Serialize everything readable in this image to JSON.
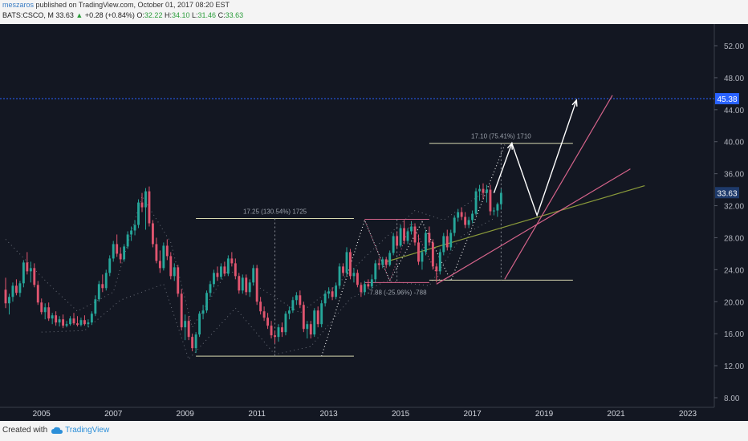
{
  "header": {
    "author": "meszaros",
    "published": "published on TradingView.com, October 01, 2017 08:20 EST",
    "symbol": "BATS:CSCO, M",
    "price": "33.63",
    "change": "+0.28 (+0.84%)",
    "o_label": "O:",
    "o_value": "32.22",
    "h_label": "H:",
    "h_value": "34.10",
    "l_label": "L:",
    "l_value": "31.46",
    "c_label": "C:",
    "c_value": "33.63"
  },
  "footer": {
    "created_with": "Created with",
    "brand": "TradingView"
  },
  "colors": {
    "background": "#131722",
    "up": "#26a69a",
    "down": "#e0556f",
    "accent": "#2962ff",
    "measure": "#d8d8b0",
    "pink": "#d4638a"
  },
  "chart_data": {
    "type": "candlestick",
    "title": "BATS:CSCO, M",
    "x_range": [
      2004.0,
      2024.0
    ],
    "ylim": [
      7.0,
      54.5
    ],
    "y_ticks": [
      "52.00",
      "48.00",
      "44.00",
      "40.00",
      "36.00",
      "32.00",
      "28.00",
      "24.00",
      "20.00",
      "16.00",
      "12.00",
      "8.00"
    ],
    "x_ticks": [
      "2005",
      "2007",
      "2009",
      "2011",
      "2013",
      "2015",
      "2017",
      "2019",
      "2021",
      "2023"
    ],
    "current_price_label": "33.63",
    "target_price_label": "45.38",
    "target_line_price": 45.38,
    "annotations": [
      {
        "text": "17.25 (130.54%) 1725",
        "x_start": 2009.3,
        "x_end": 2013.7,
        "y_low": 13.2,
        "y_high": 30.4
      },
      {
        "text": "17.10 (75.41%) 1710",
        "x_start": 2015.8,
        "x_end": 2019.8,
        "y_low": 22.7,
        "y_high": 39.8
      },
      {
        "text": "-7.88 (-25.96%) -788",
        "x_start": 2014.0,
        "x_end": 2015.8,
        "y_low": 22.4,
        "y_high": 30.3
      }
    ],
    "candles": [
      {
        "t": 2004.0,
        "o": 21.5,
        "h": 23.0,
        "l": 19.2,
        "c": 19.8
      },
      {
        "t": 2004.1,
        "o": 19.8,
        "h": 21.0,
        "l": 18.4,
        "c": 20.6
      },
      {
        "t": 2004.2,
        "o": 20.6,
        "h": 22.4,
        "l": 20.0,
        "c": 22.0
      },
      {
        "t": 2004.3,
        "o": 22.0,
        "h": 22.8,
        "l": 20.8,
        "c": 21.1
      },
      {
        "t": 2004.4,
        "o": 21.1,
        "h": 22.6,
        "l": 20.6,
        "c": 22.3
      },
      {
        "t": 2004.5,
        "o": 22.3,
        "h": 25.2,
        "l": 21.8,
        "c": 24.9
      },
      {
        "t": 2004.6,
        "o": 24.9,
        "h": 26.2,
        "l": 23.4,
        "c": 23.8
      },
      {
        "t": 2004.7,
        "o": 23.8,
        "h": 25.0,
        "l": 22.4,
        "c": 24.2
      },
      {
        "t": 2004.8,
        "o": 24.2,
        "h": 24.8,
        "l": 21.8,
        "c": 22.1
      },
      {
        "t": 2004.9,
        "o": 22.1,
        "h": 22.6,
        "l": 19.6,
        "c": 19.9
      },
      {
        "t": 2005.0,
        "o": 19.9,
        "h": 20.4,
        "l": 18.4,
        "c": 18.7
      },
      {
        "t": 2005.1,
        "o": 18.7,
        "h": 19.8,
        "l": 17.8,
        "c": 19.3
      },
      {
        "t": 2005.2,
        "o": 19.3,
        "h": 19.9,
        "l": 17.6,
        "c": 17.9
      },
      {
        "t": 2005.3,
        "o": 17.9,
        "h": 18.6,
        "l": 17.2,
        "c": 18.3
      },
      {
        "t": 2005.4,
        "o": 18.3,
        "h": 18.8,
        "l": 17.0,
        "c": 17.4
      },
      {
        "t": 2005.5,
        "o": 17.4,
        "h": 18.2,
        "l": 16.9,
        "c": 17.8
      },
      {
        "t": 2005.6,
        "o": 17.8,
        "h": 18.4,
        "l": 16.7,
        "c": 17.0
      },
      {
        "t": 2005.7,
        "o": 17.0,
        "h": 17.6,
        "l": 16.8,
        "c": 17.2
      },
      {
        "t": 2005.8,
        "o": 17.2,
        "h": 18.2,
        "l": 17.0,
        "c": 17.9
      },
      {
        "t": 2005.9,
        "o": 17.9,
        "h": 18.6,
        "l": 17.1,
        "c": 17.3
      },
      {
        "t": 2006.0,
        "o": 17.3,
        "h": 18.2,
        "l": 16.9,
        "c": 17.1
      },
      {
        "t": 2006.1,
        "o": 17.1,
        "h": 18.0,
        "l": 16.9,
        "c": 17.7
      },
      {
        "t": 2006.2,
        "o": 17.7,
        "h": 18.3,
        "l": 17.0,
        "c": 17.2
      },
      {
        "t": 2006.3,
        "o": 17.2,
        "h": 17.8,
        "l": 16.8,
        "c": 17.4
      },
      {
        "t": 2006.4,
        "o": 17.4,
        "h": 18.8,
        "l": 17.1,
        "c": 18.5
      },
      {
        "t": 2006.5,
        "o": 18.5,
        "h": 20.8,
        "l": 18.2,
        "c": 20.3
      },
      {
        "t": 2006.6,
        "o": 20.3,
        "h": 22.6,
        "l": 20.0,
        "c": 22.2
      },
      {
        "t": 2006.7,
        "o": 22.2,
        "h": 23.4,
        "l": 21.2,
        "c": 21.7
      },
      {
        "t": 2006.8,
        "o": 21.7,
        "h": 24.0,
        "l": 21.4,
        "c": 23.6
      },
      {
        "t": 2006.9,
        "o": 23.6,
        "h": 25.8,
        "l": 23.2,
        "c": 25.4
      },
      {
        "t": 2007.0,
        "o": 25.4,
        "h": 27.6,
        "l": 25.0,
        "c": 27.2
      },
      {
        "t": 2007.1,
        "o": 27.2,
        "h": 28.4,
        "l": 25.6,
        "c": 26.0
      },
      {
        "t": 2007.2,
        "o": 26.0,
        "h": 26.8,
        "l": 24.8,
        "c": 25.3
      },
      {
        "t": 2007.3,
        "o": 25.3,
        "h": 27.2,
        "l": 25.0,
        "c": 26.9
      },
      {
        "t": 2007.4,
        "o": 26.9,
        "h": 28.8,
        "l": 26.6,
        "c": 28.4
      },
      {
        "t": 2007.5,
        "o": 28.4,
        "h": 29.4,
        "l": 27.6,
        "c": 28.9
      },
      {
        "t": 2007.6,
        "o": 28.9,
        "h": 30.2,
        "l": 28.3,
        "c": 29.6
      },
      {
        "t": 2007.7,
        "o": 29.6,
        "h": 32.8,
        "l": 29.2,
        "c": 32.4
      },
      {
        "t": 2007.8,
        "o": 32.4,
        "h": 33.6,
        "l": 31.2,
        "c": 31.8
      },
      {
        "t": 2007.9,
        "o": 31.8,
        "h": 34.2,
        "l": 29.0,
        "c": 33.8
      },
      {
        "t": 2008.0,
        "o": 33.8,
        "h": 34.4,
        "l": 29.4,
        "c": 29.8
      },
      {
        "t": 2008.1,
        "o": 29.8,
        "h": 30.2,
        "l": 26.8,
        "c": 27.2
      },
      {
        "t": 2008.2,
        "o": 27.2,
        "h": 28.0,
        "l": 24.8,
        "c": 25.1
      },
      {
        "t": 2008.3,
        "o": 25.1,
        "h": 26.4,
        "l": 23.6,
        "c": 24.2
      },
      {
        "t": 2008.4,
        "o": 24.2,
        "h": 27.4,
        "l": 23.9,
        "c": 27.0
      },
      {
        "t": 2008.5,
        "o": 27.0,
        "h": 27.8,
        "l": 25.2,
        "c": 25.7
      },
      {
        "t": 2008.6,
        "o": 25.7,
        "h": 26.2,
        "l": 22.8,
        "c": 23.2
      },
      {
        "t": 2008.7,
        "o": 23.2,
        "h": 24.8,
        "l": 22.6,
        "c": 24.3
      },
      {
        "t": 2008.8,
        "o": 24.3,
        "h": 24.6,
        "l": 20.6,
        "c": 21.0
      },
      {
        "t": 2008.9,
        "o": 21.0,
        "h": 21.6,
        "l": 16.4,
        "c": 16.8
      },
      {
        "t": 2009.0,
        "o": 16.8,
        "h": 18.4,
        "l": 15.2,
        "c": 17.6
      },
      {
        "t": 2009.1,
        "o": 17.6,
        "h": 18.2,
        "l": 15.2,
        "c": 15.6
      },
      {
        "t": 2009.2,
        "o": 15.6,
        "h": 16.0,
        "l": 13.8,
        "c": 14.2
      },
      {
        "t": 2009.3,
        "o": 14.2,
        "h": 16.2,
        "l": 13.6,
        "c": 15.9
      },
      {
        "t": 2009.4,
        "o": 15.9,
        "h": 18.8,
        "l": 15.6,
        "c": 18.5
      },
      {
        "t": 2009.5,
        "o": 18.5,
        "h": 19.6,
        "l": 17.8,
        "c": 18.9
      },
      {
        "t": 2009.6,
        "o": 18.9,
        "h": 21.4,
        "l": 18.6,
        "c": 21.1
      },
      {
        "t": 2009.7,
        "o": 21.1,
        "h": 22.6,
        "l": 20.6,
        "c": 22.2
      },
      {
        "t": 2009.8,
        "o": 22.2,
        "h": 24.0,
        "l": 21.8,
        "c": 23.6
      },
      {
        "t": 2009.9,
        "o": 23.6,
        "h": 24.4,
        "l": 22.6,
        "c": 23.1
      },
      {
        "t": 2010.0,
        "o": 23.1,
        "h": 24.8,
        "l": 22.8,
        "c": 24.4
      },
      {
        "t": 2010.1,
        "o": 24.4,
        "h": 25.0,
        "l": 23.2,
        "c": 23.5
      },
      {
        "t": 2010.2,
        "o": 23.5,
        "h": 25.8,
        "l": 23.2,
        "c": 25.4
      },
      {
        "t": 2010.3,
        "o": 25.4,
        "h": 26.2,
        "l": 24.4,
        "c": 24.8
      },
      {
        "t": 2010.4,
        "o": 24.8,
        "h": 25.4,
        "l": 22.8,
        "c": 23.2
      },
      {
        "t": 2010.5,
        "o": 23.2,
        "h": 23.6,
        "l": 21.0,
        "c": 21.4
      },
      {
        "t": 2010.6,
        "o": 21.4,
        "h": 23.4,
        "l": 21.0,
        "c": 23.0
      },
      {
        "t": 2010.7,
        "o": 23.0,
        "h": 23.4,
        "l": 20.8,
        "c": 21.2
      },
      {
        "t": 2010.8,
        "o": 21.2,
        "h": 22.8,
        "l": 20.6,
        "c": 22.4
      },
      {
        "t": 2010.9,
        "o": 22.4,
        "h": 24.6,
        "l": 22.0,
        "c": 24.2
      },
      {
        "t": 2011.0,
        "o": 24.2,
        "h": 24.6,
        "l": 19.6,
        "c": 20.0
      },
      {
        "t": 2011.1,
        "o": 20.0,
        "h": 20.6,
        "l": 18.4,
        "c": 18.8
      },
      {
        "t": 2011.2,
        "o": 18.8,
        "h": 19.4,
        "l": 17.6,
        "c": 18.0
      },
      {
        "t": 2011.3,
        "o": 18.0,
        "h": 18.6,
        "l": 16.6,
        "c": 17.0
      },
      {
        "t": 2011.4,
        "o": 17.0,
        "h": 17.6,
        "l": 15.4,
        "c": 15.8
      },
      {
        "t": 2011.5,
        "o": 15.8,
        "h": 16.4,
        "l": 14.8,
        "c": 15.6
      },
      {
        "t": 2011.6,
        "o": 15.6,
        "h": 17.2,
        "l": 15.0,
        "c": 16.8
      },
      {
        "t": 2011.7,
        "o": 16.8,
        "h": 17.4,
        "l": 15.6,
        "c": 16.2
      },
      {
        "t": 2011.8,
        "o": 16.2,
        "h": 18.8,
        "l": 15.8,
        "c": 18.5
      },
      {
        "t": 2011.9,
        "o": 18.5,
        "h": 19.4,
        "l": 17.8,
        "c": 18.9
      },
      {
        "t": 2012.0,
        "o": 18.9,
        "h": 20.6,
        "l": 18.6,
        "c": 20.2
      },
      {
        "t": 2012.1,
        "o": 20.2,
        "h": 21.2,
        "l": 19.6,
        "c": 20.8
      },
      {
        "t": 2012.2,
        "o": 20.8,
        "h": 21.4,
        "l": 19.2,
        "c": 19.6
      },
      {
        "t": 2012.3,
        "o": 19.6,
        "h": 20.0,
        "l": 16.2,
        "c": 16.6
      },
      {
        "t": 2012.4,
        "o": 16.6,
        "h": 17.6,
        "l": 15.4,
        "c": 17.2
      },
      {
        "t": 2012.5,
        "o": 17.2,
        "h": 17.6,
        "l": 15.4,
        "c": 15.9
      },
      {
        "t": 2012.6,
        "o": 15.9,
        "h": 19.2,
        "l": 15.6,
        "c": 18.9
      },
      {
        "t": 2012.7,
        "o": 18.9,
        "h": 19.4,
        "l": 16.8,
        "c": 17.2
      },
      {
        "t": 2012.8,
        "o": 17.2,
        "h": 20.2,
        "l": 16.8,
        "c": 19.8
      },
      {
        "t": 2012.9,
        "o": 19.8,
        "h": 21.4,
        "l": 19.4,
        "c": 21.0
      },
      {
        "t": 2013.0,
        "o": 21.0,
        "h": 21.8,
        "l": 20.4,
        "c": 21.3
      },
      {
        "t": 2013.1,
        "o": 21.3,
        "h": 21.8,
        "l": 20.2,
        "c": 20.6
      },
      {
        "t": 2013.2,
        "o": 20.6,
        "h": 22.4,
        "l": 20.3,
        "c": 22.0
      },
      {
        "t": 2013.3,
        "o": 22.0,
        "h": 24.8,
        "l": 21.6,
        "c": 24.4
      },
      {
        "t": 2013.4,
        "o": 24.4,
        "h": 24.8,
        "l": 23.2,
        "c": 23.6
      },
      {
        "t": 2013.5,
        "o": 23.6,
        "h": 26.8,
        "l": 23.2,
        "c": 26.2
      },
      {
        "t": 2013.6,
        "o": 26.2,
        "h": 26.6,
        "l": 22.8,
        "c": 23.2
      },
      {
        "t": 2013.7,
        "o": 23.2,
        "h": 24.2,
        "l": 22.4,
        "c": 23.6
      },
      {
        "t": 2013.8,
        "o": 23.6,
        "h": 24.0,
        "l": 21.8,
        "c": 22.1
      },
      {
        "t": 2013.9,
        "o": 22.1,
        "h": 22.4,
        "l": 20.6,
        "c": 21.2
      },
      {
        "t": 2014.0,
        "o": 21.2,
        "h": 22.6,
        "l": 20.8,
        "c": 22.2
      },
      {
        "t": 2014.1,
        "o": 22.2,
        "h": 22.8,
        "l": 21.6,
        "c": 21.9
      },
      {
        "t": 2014.2,
        "o": 21.9,
        "h": 23.4,
        "l": 21.6,
        "c": 22.8
      },
      {
        "t": 2014.3,
        "o": 22.8,
        "h": 25.2,
        "l": 22.4,
        "c": 24.8
      },
      {
        "t": 2014.4,
        "o": 24.8,
        "h": 25.4,
        "l": 24.0,
        "c": 24.6
      },
      {
        "t": 2014.5,
        "o": 24.6,
        "h": 25.6,
        "l": 24.2,
        "c": 25.3
      },
      {
        "t": 2014.6,
        "o": 25.3,
        "h": 25.6,
        "l": 24.2,
        "c": 24.6
      },
      {
        "t": 2014.7,
        "o": 24.6,
        "h": 26.4,
        "l": 24.4,
        "c": 26.1
      },
      {
        "t": 2014.8,
        "o": 26.1,
        "h": 28.6,
        "l": 25.8,
        "c": 28.2
      },
      {
        "t": 2014.9,
        "o": 28.2,
        "h": 28.8,
        "l": 26.6,
        "c": 27.0
      },
      {
        "t": 2015.0,
        "o": 27.0,
        "h": 29.6,
        "l": 26.8,
        "c": 29.2
      },
      {
        "t": 2015.1,
        "o": 29.2,
        "h": 30.2,
        "l": 27.2,
        "c": 27.6
      },
      {
        "t": 2015.2,
        "o": 27.6,
        "h": 29.2,
        "l": 27.2,
        "c": 28.8
      },
      {
        "t": 2015.3,
        "o": 28.8,
        "h": 30.0,
        "l": 28.4,
        "c": 29.4
      },
      {
        "t": 2015.4,
        "o": 29.4,
        "h": 29.8,
        "l": 27.0,
        "c": 27.4
      },
      {
        "t": 2015.5,
        "o": 27.4,
        "h": 28.4,
        "l": 24.6,
        "c": 25.0
      },
      {
        "t": 2015.6,
        "o": 25.0,
        "h": 26.6,
        "l": 24.0,
        "c": 26.2
      },
      {
        "t": 2015.7,
        "o": 26.2,
        "h": 29.0,
        "l": 25.8,
        "c": 28.6
      },
      {
        "t": 2015.8,
        "o": 28.6,
        "h": 29.4,
        "l": 27.0,
        "c": 27.4
      },
      {
        "t": 2015.9,
        "o": 27.4,
        "h": 27.8,
        "l": 24.0,
        "c": 24.4
      },
      {
        "t": 2016.0,
        "o": 24.4,
        "h": 24.8,
        "l": 22.4,
        "c": 23.8
      },
      {
        "t": 2016.1,
        "o": 23.8,
        "h": 26.6,
        "l": 23.4,
        "c": 26.2
      },
      {
        "t": 2016.2,
        "o": 26.2,
        "h": 28.6,
        "l": 25.8,
        "c": 28.2
      },
      {
        "t": 2016.3,
        "o": 28.2,
        "h": 29.0,
        "l": 26.4,
        "c": 26.8
      },
      {
        "t": 2016.4,
        "o": 26.8,
        "h": 29.0,
        "l": 26.4,
        "c": 28.6
      },
      {
        "t": 2016.5,
        "o": 28.6,
        "h": 30.8,
        "l": 28.2,
        "c": 30.5
      },
      {
        "t": 2016.6,
        "o": 30.5,
        "h": 31.6,
        "l": 30.0,
        "c": 31.2
      },
      {
        "t": 2016.7,
        "o": 31.2,
        "h": 31.8,
        "l": 30.2,
        "c": 30.6
      },
      {
        "t": 2016.8,
        "o": 30.6,
        "h": 31.2,
        "l": 29.2,
        "c": 29.6
      },
      {
        "t": 2016.9,
        "o": 29.6,
        "h": 30.6,
        "l": 29.2,
        "c": 30.2
      },
      {
        "t": 2017.0,
        "o": 30.2,
        "h": 31.4,
        "l": 29.8,
        "c": 31.0
      },
      {
        "t": 2017.1,
        "o": 31.0,
        "h": 34.2,
        "l": 30.8,
        "c": 33.8
      },
      {
        "t": 2017.2,
        "o": 33.8,
        "h": 34.6,
        "l": 32.6,
        "c": 34.1
      },
      {
        "t": 2017.3,
        "o": 34.1,
        "h": 34.8,
        "l": 32.8,
        "c": 33.6
      },
      {
        "t": 2017.4,
        "o": 33.6,
        "h": 34.6,
        "l": 32.4,
        "c": 34.0
      },
      {
        "t": 2017.5,
        "o": 34.0,
        "h": 34.6,
        "l": 30.8,
        "c": 31.3
      },
      {
        "t": 2017.6,
        "o": 31.3,
        "h": 31.8,
        "l": 30.8,
        "c": 31.4
      },
      {
        "t": 2017.7,
        "o": 31.4,
        "h": 32.4,
        "l": 30.6,
        "c": 32.2
      },
      {
        "t": 2017.8,
        "o": 32.2,
        "h": 34.1,
        "l": 31.5,
        "c": 33.6
      }
    ]
  }
}
